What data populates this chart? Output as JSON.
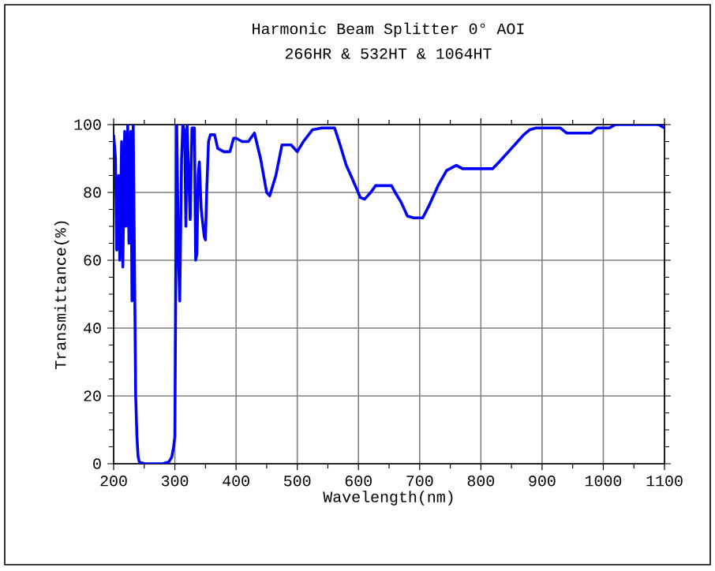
{
  "chart_data": {
    "type": "line",
    "title": "Harmonic Beam Splitter 0°  AOI",
    "subtitle": "266HR & 532HT & 1064HT",
    "xlabel": "Wavelength(nm)",
    "ylabel": "Transmittance(%)",
    "xlim": [
      200,
      1100
    ],
    "ylim": [
      0,
      100
    ],
    "xticks": [
      200,
      300,
      400,
      500,
      600,
      700,
      800,
      900,
      1000,
      1100
    ],
    "yticks": [
      0,
      20,
      40,
      60,
      80,
      100
    ],
    "grid": true,
    "marker": "none",
    "line_style": "solid",
    "series": [
      {
        "color": "#0000ff",
        "x": [
          200,
          203,
          205,
          208,
          210,
          213,
          215,
          218,
          220,
          223,
          225,
          228,
          230,
          232,
          234,
          236,
          238,
          240,
          242,
          250,
          260,
          280,
          290,
          295,
          298,
          300,
          302,
          303,
          306,
          308,
          311,
          313,
          316,
          318,
          320,
          325,
          328,
          332,
          334,
          336,
          338,
          340,
          343,
          348,
          350,
          352,
          355,
          358,
          365,
          370,
          380,
          390,
          396,
          400,
          410,
          420,
          430,
          440,
          450,
          455,
          465,
          475,
          490,
          500,
          510,
          525,
          540,
          561,
          570,
          580,
          590,
          603,
          610,
          620,
          628,
          640,
          654,
          660,
          670,
          680,
          690,
          705,
          715,
          730,
          744,
          760,
          770,
          790,
          819,
          830,
          840,
          850,
          860,
          870,
          880,
          890,
          910,
          930,
          940,
          960,
          980,
          990,
          1010,
          1020,
          1050,
          1090,
          1100
        ],
        "values": [
          97,
          90,
          63,
          85,
          60,
          95,
          58,
          98,
          70,
          100,
          65,
          98,
          48,
          100,
          60,
          20,
          8,
          2,
          0.5,
          0,
          0,
          0,
          0.5,
          2,
          5,
          8,
          70,
          100,
          60,
          48,
          90,
          100,
          98,
          70,
          100,
          72,
          99,
          99,
          60,
          62,
          85,
          89,
          75,
          67,
          66,
          80,
          95,
          97,
          97,
          93,
          92,
          92,
          96,
          96,
          95,
          95,
          97.5,
          90,
          80,
          79,
          85,
          94,
          94,
          92,
          95,
          98.5,
          99,
          99,
          94,
          88,
          84,
          78.5,
          78,
          80,
          82,
          82,
          82,
          80,
          77,
          73,
          72.5,
          72.5,
          76,
          82,
          86.5,
          88,
          87,
          87,
          87,
          89,
          91,
          93,
          95,
          97,
          98.5,
          99,
          99,
          99,
          97.5,
          97.5,
          97.5,
          99,
          99,
          100,
          100,
          100,
          99
        ]
      }
    ]
  }
}
